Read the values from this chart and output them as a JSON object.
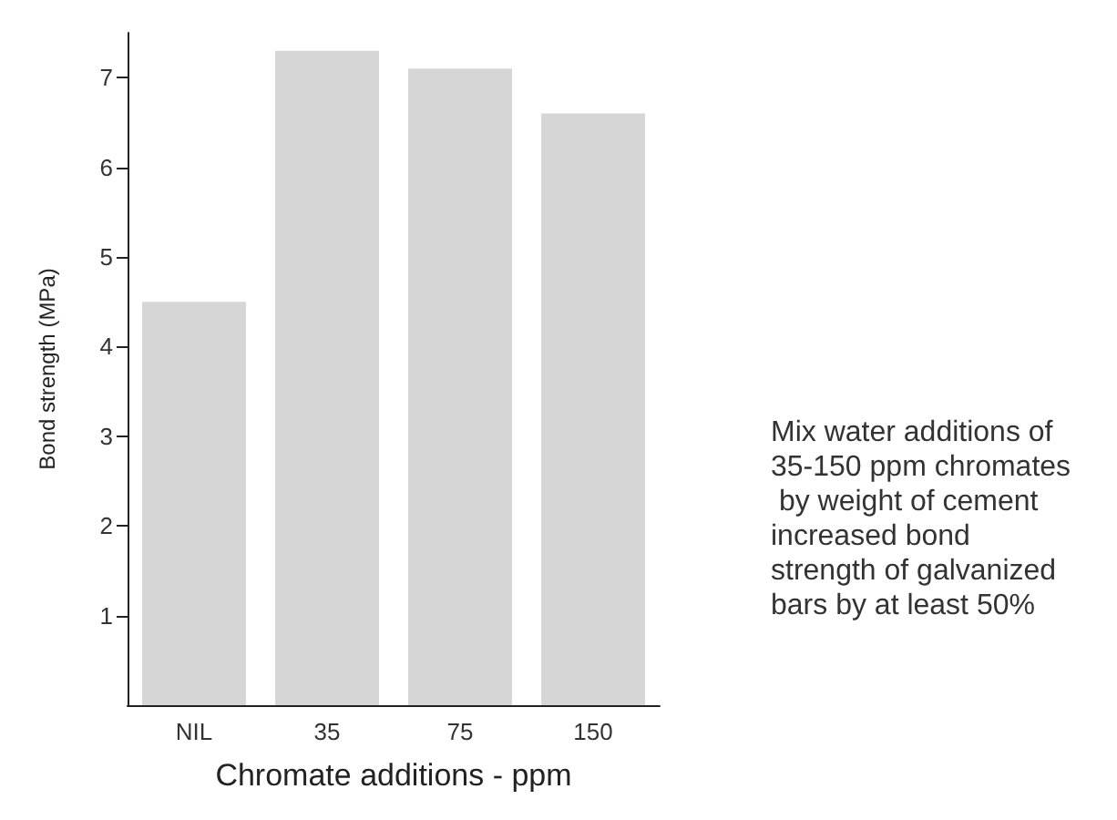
{
  "chart_data": {
    "type": "bar",
    "xlabel": "Chromate additions - ppm",
    "ylabel": "Bond strength (MPa)",
    "categories": [
      "NIL",
      "35",
      "75",
      "150"
    ],
    "values": [
      4.5,
      7.3,
      7.1,
      6.6
    ],
    "color": "#d6d6d6",
    "ylim": [
      0,
      7.5
    ],
    "yticks": [
      1,
      2,
      3,
      4,
      5,
      6,
      7
    ],
    "grid": false,
    "annotations": [
      "Mix water additions of 35-150 ppm chromates by weight of cement increased bond strength of galvanized bars by at least 50%"
    ]
  }
}
